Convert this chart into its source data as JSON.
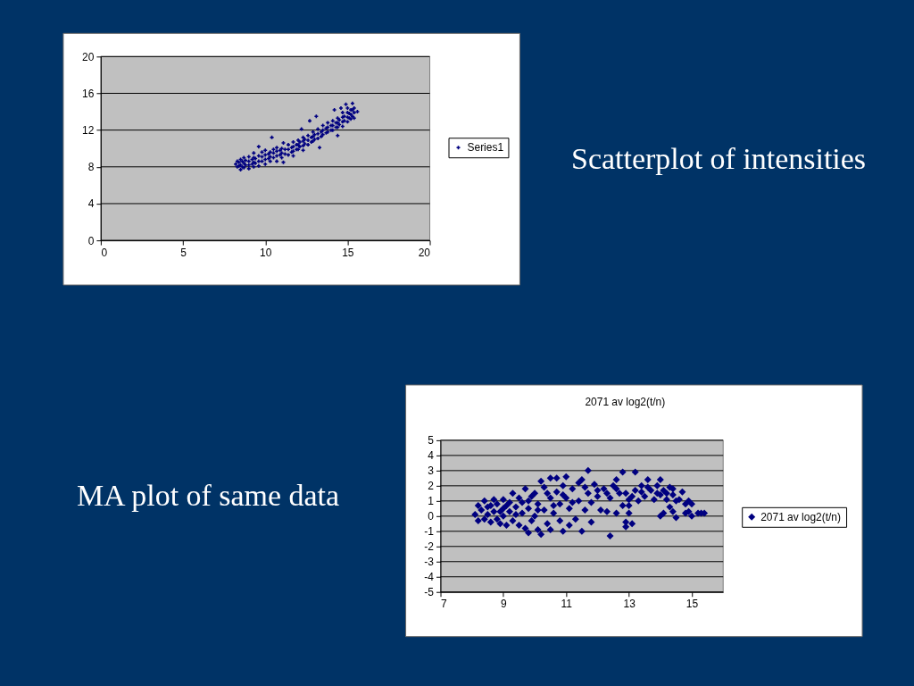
{
  "chart_data": [
    {
      "type": "scatter",
      "xlim": [
        0,
        20
      ],
      "xticks": [
        0,
        5,
        10,
        15,
        20
      ],
      "ylim": [
        0,
        20
      ],
      "yticks": [
        0,
        4,
        8,
        12,
        16,
        20
      ],
      "grid": "y",
      "legend": "right",
      "marker": "cross",
      "annotations": [
        "Scatterplot of intensities"
      ],
      "series": [
        {
          "name": "Series1",
          "color": "#000080",
          "x": [
            8.2,
            8.3,
            8.3,
            8.5,
            8.5,
            8.5,
            8.7,
            8.7,
            8.7,
            9.0,
            9.0,
            9.0,
            9.0,
            9.3,
            9.3,
            9.3,
            9.3,
            9.6,
            9.6,
            9.6,
            9.6,
            10.0,
            10.0,
            10.0,
            10.0,
            10.3,
            10.3,
            10.3,
            10.4,
            10.7,
            10.7,
            10.7,
            10.7,
            11.0,
            11.0,
            11.0,
            11.1,
            11.1,
            11.4,
            11.4,
            11.4,
            11.7,
            11.7,
            11.7,
            11.7,
            12.0,
            12.0,
            12.0,
            12.2,
            12.3,
            12.3,
            12.3,
            12.3,
            12.6,
            12.6,
            12.6,
            12.7,
            12.9,
            12.9,
            12.9,
            13.1,
            13.2,
            13.2,
            13.2,
            13.3,
            13.5,
            13.5,
            13.5,
            13.8,
            13.8,
            13.8,
            14.1,
            14.1,
            14.1,
            14.2,
            14.4,
            14.4,
            14.4,
            14.4,
            14.6,
            14.7,
            14.7,
            14.7,
            14.7,
            14.9,
            15.0,
            15.0,
            15.0,
            15.0,
            15.2,
            15.2,
            15.2,
            15.3,
            15.4,
            15.4,
            15.4,
            15.6,
            8.4,
            8.4,
            8.6,
            8.6,
            8.8,
            8.8,
            9.2,
            9.2,
            9.4,
            9.4,
            9.8,
            9.8,
            9.8,
            10.2,
            10.2,
            10.5,
            10.5,
            10.5,
            10.9,
            10.9,
            11.2,
            11.2,
            11.6,
            11.6,
            11.9,
            11.9,
            12.1,
            12.1,
            12.4,
            12.4,
            12.8,
            12.8,
            13.0,
            13.0,
            13.4,
            13.4,
            13.7,
            13.7,
            14.0,
            14.0,
            14.3,
            14.3,
            14.5,
            14.5,
            14.8,
            14.8,
            15.1,
            15.1,
            15.3,
            15.3
          ],
          "values": [
            8.3,
            8.0,
            8.6,
            7.7,
            8.2,
            8.8,
            7.9,
            8.4,
            9.0,
            7.8,
            8.2,
            8.6,
            9.1,
            8.0,
            8.5,
            9.0,
            9.5,
            8.1,
            8.6,
            9.2,
            10.2,
            8.3,
            8.8,
            9.3,
            9.8,
            8.6,
            9.1,
            9.6,
            11.2,
            8.6,
            9.2,
            9.7,
            10.1,
            9.0,
            9.5,
            10.0,
            10.6,
            8.5,
            9.3,
            9.9,
            10.4,
            9.2,
            9.7,
            10.2,
            10.7,
            9.9,
            10.4,
            10.9,
            12.1,
            9.8,
            10.3,
            10.8,
            11.2,
            10.4,
            10.9,
            11.4,
            13.0,
            10.8,
            11.3,
            11.8,
            13.5,
            11.1,
            11.6,
            12.1,
            10.1,
            11.5,
            12.0,
            12.5,
            11.8,
            12.3,
            12.8,
            12.0,
            12.5,
            13.0,
            14.2,
            11.4,
            12.3,
            12.8,
            13.3,
            14.4,
            12.4,
            12.9,
            13.4,
            13.9,
            14.8,
            12.9,
            13.4,
            13.9,
            14.4,
            13.2,
            13.7,
            14.2,
            14.9,
            13.3,
            13.9,
            14.4,
            14.0,
            8.1,
            8.5,
            8.0,
            8.6,
            8.2,
            8.7,
            8.3,
            8.8,
            8.4,
            8.9,
            8.6,
            9.1,
            9.6,
            8.9,
            9.4,
            9.0,
            9.5,
            9.9,
            9.3,
            9.8,
            9.4,
            9.9,
            9.6,
            10.1,
            9.9,
            10.4,
            10.2,
            10.7,
            10.5,
            11.0,
            10.7,
            11.2,
            11.0,
            11.5,
            11.3,
            11.8,
            11.7,
            12.2,
            12.0,
            12.5,
            12.3,
            12.8,
            12.6,
            13.1,
            13.0,
            13.5,
            13.3,
            13.8,
            13.5,
            14.2
          ]
        }
      ]
    },
    {
      "type": "scatter",
      "title": "2071 av log2(t/n)",
      "xlim": [
        7,
        16
      ],
      "xticks": [
        7,
        9,
        11,
        13,
        15
      ],
      "ylim": [
        -5,
        5
      ],
      "yticks": [
        -5,
        -4,
        -3,
        -2,
        -1,
        0,
        1,
        2,
        3,
        4,
        5
      ],
      "grid": "y",
      "legend": "right",
      "marker": "diamond",
      "annotations": [
        "MA plot of same data"
      ],
      "series": [
        {
          "name": "2071 av log2(t/n)",
          "color": "#000080",
          "x": [
            8.1,
            8.2,
            8.2,
            8.3,
            8.4,
            8.4,
            8.5,
            8.5,
            8.6,
            8.6,
            8.7,
            8.7,
            8.8,
            8.8,
            8.9,
            8.9,
            9.0,
            9.0,
            9.0,
            9.1,
            9.1,
            9.2,
            9.2,
            9.3,
            9.3,
            9.4,
            9.4,
            9.5,
            9.5,
            9.6,
            9.6,
            9.7,
            9.7,
            9.8,
            9.8,
            9.8,
            9.9,
            9.9,
            10.0,
            10.0,
            10.1,
            10.1,
            10.1,
            10.2,
            10.2,
            10.3,
            10.3,
            10.4,
            10.4,
            10.5,
            10.5,
            10.5,
            10.6,
            10.6,
            10.7,
            10.7,
            10.8,
            10.8,
            10.9,
            10.9,
            10.9,
            11.0,
            11.0,
            11.1,
            11.1,
            11.2,
            11.2,
            11.3,
            11.4,
            11.4,
            11.5,
            11.5,
            11.6,
            11.6,
            11.7,
            11.7,
            11.8,
            11.8,
            11.9,
            12.0,
            12.0,
            12.1,
            12.2,
            12.3,
            12.3,
            12.4,
            12.4,
            12.5,
            12.6,
            12.6,
            12.6,
            12.7,
            12.8,
            12.8,
            12.9,
            12.9,
            12.9,
            13.0,
            13.0,
            13.0,
            13.1,
            13.1,
            13.2,
            13.2,
            13.3,
            13.4,
            13.4,
            13.5,
            13.6,
            13.6,
            13.7,
            13.8,
            13.9,
            13.9,
            14.0,
            14.0,
            14.0,
            14.1,
            14.1,
            14.2,
            14.2,
            14.3,
            14.3,
            14.4,
            14.4,
            14.4,
            14.5,
            14.5,
            14.6,
            14.7,
            14.8,
            14.8,
            14.9,
            14.9,
            15.0,
            15.0,
            15.2,
            15.3,
            15.4
          ],
          "values": [
            0.1,
            0.7,
            -0.3,
            0.4,
            1.0,
            -0.2,
            0.6,
            0.1,
            -0.4,
            0.7,
            1.1,
            0.3,
            0.8,
            -0.2,
            -0.5,
            0.3,
            0.5,
            1.1,
            0.0,
            -0.6,
            0.7,
            0.9,
            0.3,
            1.5,
            -0.3,
            0.6,
            0.1,
            1.2,
            -0.6,
            0.2,
            0.9,
            1.8,
            -0.8,
            1.0,
            -1.1,
            0.5,
            -0.3,
            1.3,
            1.5,
            0.0,
            -0.9,
            0.8,
            0.4,
            2.3,
            -1.2,
            1.9,
            0.4,
            -0.5,
            1.5,
            2.5,
            1.2,
            -0.9,
            0.2,
            0.7,
            2.5,
            1.6,
            -0.3,
            0.8,
            -1.0,
            2.0,
            1.4,
            2.6,
            1.2,
            -0.6,
            0.5,
            1.8,
            0.9,
            -0.2,
            2.2,
            1.0,
            -1.0,
            2.4,
            0.4,
            1.9,
            3.0,
            1.5,
            -0.4,
            0.9,
            2.1,
            1.3,
            1.7,
            0.4,
            1.8,
            0.3,
            1.5,
            -1.3,
            1.2,
            2.0,
            2.4,
            0.2,
            1.8,
            1.5,
            0.7,
            2.9,
            -0.4,
            -0.7,
            1.5,
            1.1,
            0.7,
            0.2,
            -0.5,
            1.3,
            2.9,
            1.7,
            1.0,
            2.0,
            1.6,
            1.3,
            2.4,
            1.9,
            1.7,
            1.1,
            2.0,
            1.5,
            2.4,
            1.4,
            0.0,
            0.2,
            1.7,
            1.1,
            1.5,
            0.6,
            1.9,
            1.4,
            0.3,
            1.8,
            -0.1,
            1.0,
            1.1,
            1.6,
            0.8,
            0.2,
            0.3,
            1.0,
            0.8,
            0.0,
            0.2,
            0.2,
            0.2
          ]
        }
      ]
    }
  ]
}
